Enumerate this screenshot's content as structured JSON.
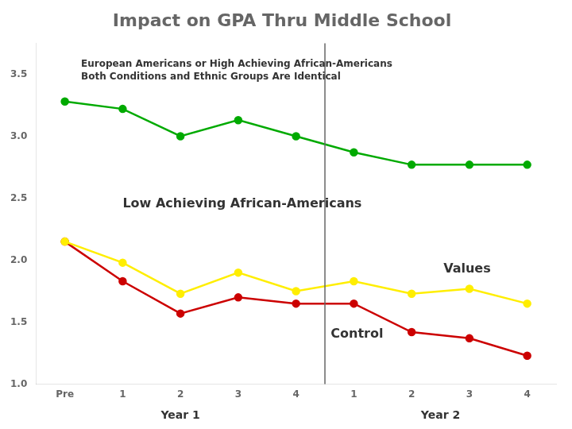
{
  "chart_data": {
    "type": "line",
    "title": "Impact on GPA Thru Middle School",
    "subtitle": [
      "European Americans or High Achieving African-Americans",
      "Both Conditions and Ethnic Groups Are Identical"
    ],
    "annotations": [
      "Low Achieving African-Americans",
      "Values",
      "Control"
    ],
    "group_labels": [
      "Year 1",
      "Year 2"
    ],
    "categories": [
      "Pre",
      "1",
      "2",
      "3",
      "4",
      "1",
      "2",
      "3",
      "4"
    ],
    "series": [
      {
        "color": "#00aa00",
        "values": [
          3.28,
          3.22,
          3.0,
          3.13,
          3.0,
          2.87,
          2.77,
          2.77,
          2.77
        ]
      },
      {
        "color": "#ffee00",
        "values": [
          2.15,
          1.98,
          1.73,
          1.9,
          1.75,
          1.83,
          1.73,
          1.77,
          1.65
        ]
      },
      {
        "color": "#cc0000",
        "values": [
          2.15,
          1.83,
          1.57,
          1.7,
          1.65,
          1.65,
          1.42,
          1.37,
          1.23
        ]
      }
    ],
    "ylim": [
      1.0,
      3.75
    ],
    "yticks": [
      {
        "value": 1.0,
        "label": "1.0"
      },
      1.5,
      {
        "value": 2.0,
        "label": "2.0"
      },
      2.5,
      {
        "value": 3.0,
        "label": "3.0"
      },
      3.5
    ],
    "grid": false,
    "marker": "circle"
  }
}
